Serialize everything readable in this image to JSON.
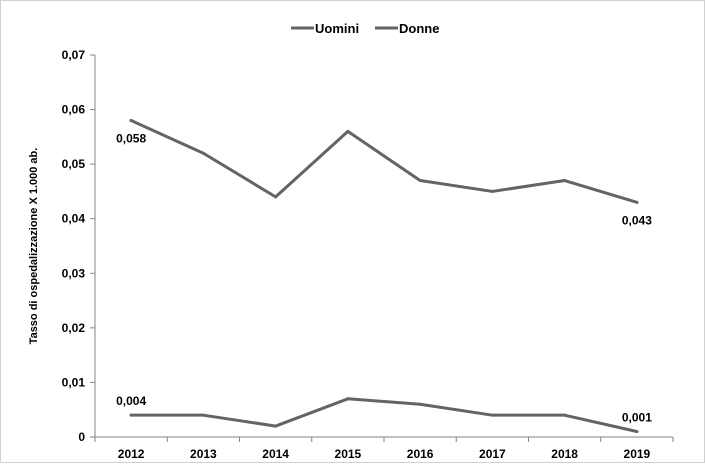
{
  "chart_data": {
    "type": "line",
    "title": "",
    "xlabel": "",
    "ylabel": "Tasso di ospedalizzazione  X 1.000 ab.",
    "categories": [
      "2012",
      "2013",
      "2014",
      "2015",
      "2016",
      "2017",
      "2018",
      "2019"
    ],
    "ylim": [
      0,
      0.07
    ],
    "yticks": [
      0,
      0.01,
      0.02,
      0.03,
      0.04,
      0.05,
      0.06,
      0.07
    ],
    "ytick_labels": [
      "0",
      "0,01",
      "0,02",
      "0,03",
      "0,04",
      "0,05",
      "0,06",
      "0,07"
    ],
    "grid": false,
    "legend_position": "top",
    "series": [
      {
        "name": "Uomini",
        "color": "#646464",
        "values": [
          0.058,
          0.052,
          0.044,
          0.056,
          0.047,
          0.045,
          0.047,
          0.043
        ]
      },
      {
        "name": "Donne",
        "color": "#646464",
        "values": [
          0.004,
          0.004,
          0.002,
          0.007,
          0.006,
          0.004,
          0.004,
          0.001
        ]
      }
    ],
    "annotations": [
      {
        "series": 0,
        "index": 0,
        "text": "0,058"
      },
      {
        "series": 0,
        "index": 7,
        "text": "0,043"
      },
      {
        "series": 1,
        "index": 0,
        "text": "0,004"
      },
      {
        "series": 1,
        "index": 7,
        "text": "0,001"
      }
    ]
  }
}
